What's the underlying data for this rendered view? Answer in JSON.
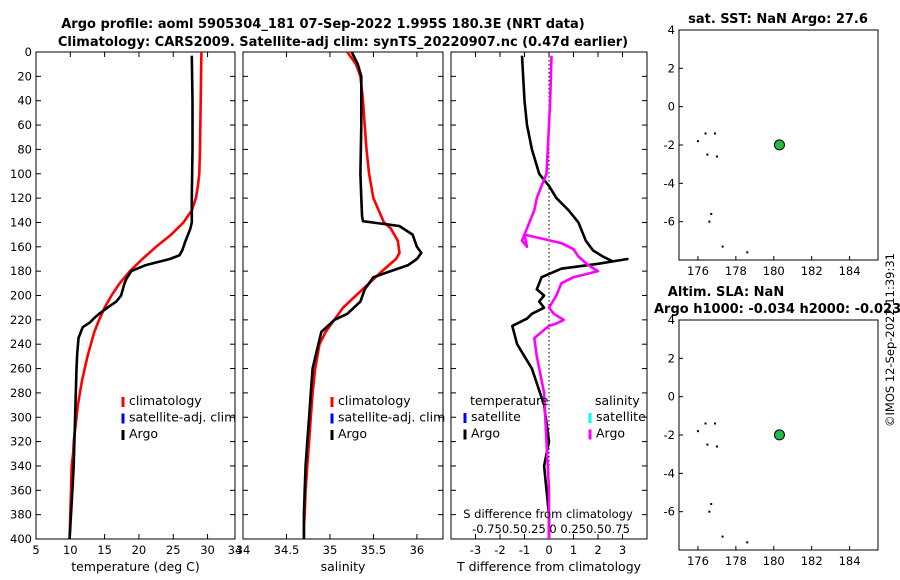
{
  "figure": {
    "title_line1": "Argo profile: aoml 5905304_181 07-Sep-2022 1.995S 180.3E (NRT data)",
    "title_line2": "Climatology: CARS2009. Satellite-adj clim: synTS_20220907.nc (0.47d earlier)",
    "side_stamp": "©IMOS 12-Sep-2022 11:39:31"
  },
  "colors": {
    "clim": "#ff0000",
    "sat": "#0000ff",
    "argo": "#000000",
    "sal_sat": "#00ffff",
    "sal_argo": "#ff00ff",
    "marker": "#22bb44"
  },
  "chart_data": [
    {
      "type": "line",
      "id": "temperature",
      "xlabel": "temperature (deg C)",
      "ylabel": "",
      "xlim": [
        5,
        34
      ],
      "ylim": [
        400,
        0
      ],
      "xticks": [
        5,
        10,
        15,
        20,
        25,
        30,
        34
      ],
      "yticks": [
        0,
        20,
        40,
        60,
        80,
        100,
        120,
        140,
        160,
        180,
        200,
        220,
        240,
        260,
        280,
        300,
        320,
        340,
        360,
        380,
        400
      ],
      "legend": [
        "climatology",
        "satellite-adj. clim",
        "Argo"
      ],
      "series": [
        {
          "name": "climatology",
          "color": "#ff0000",
          "x": [
            29.1,
            29.0,
            28.9,
            28.8,
            28.6,
            28.3,
            27.7,
            26.5,
            24.7,
            22.5,
            20.5,
            18.7,
            17.2,
            16.0,
            15.0,
            14.2,
            13.5,
            13.0,
            12.5,
            12.1,
            11.7,
            11.4,
            11.1,
            10.9,
            10.7,
            10.5,
            10.4,
            10.2,
            10.1,
            10.0,
            9.9
          ],
          "y": [
            0,
            40,
            80,
            100,
            110,
            120,
            130,
            140,
            150,
            160,
            170,
            180,
            190,
            200,
            210,
            220,
            230,
            240,
            250,
            260,
            270,
            280,
            290,
            300,
            310,
            320,
            330,
            340,
            360,
            380,
            400
          ]
        },
        {
          "name": "Argo",
          "color": "#000000",
          "x": [
            27.7,
            27.8,
            27.8,
            27.7,
            27.7,
            27.7,
            27.5,
            26.8,
            26.3,
            25.9,
            24.5,
            21.0,
            18.9,
            18.2,
            17.9,
            17.4,
            16.7,
            15.4,
            14.2,
            13.4,
            12.9,
            11.8,
            11.2,
            11.0,
            10.9,
            10.8,
            10.7,
            10.6,
            10.5,
            10.3,
            10.1,
            10.0,
            9.9
          ],
          "y": [
            3,
            40,
            80,
            120,
            135,
            140,
            145,
            155,
            163,
            167,
            170,
            175,
            180,
            186,
            190,
            200,
            205,
            210,
            215,
            219,
            222,
            226,
            235,
            248,
            260,
            280,
            300,
            320,
            340,
            360,
            380,
            390,
            400
          ]
        }
      ]
    },
    {
      "type": "line",
      "id": "salinity",
      "xlabel": "salinity",
      "ylabel": "",
      "xlim": [
        34,
        36.3
      ],
      "ylim": [
        400,
        0
      ],
      "xticks": [
        34,
        34.5,
        35,
        35.5,
        36
      ],
      "legend": [
        "climatology",
        "satellite-adj. clim",
        "Argo"
      ],
      "series": [
        {
          "name": "climatology",
          "color": "#ff0000",
          "x": [
            35.2,
            35.3,
            35.35,
            35.38,
            35.4,
            35.42,
            35.45,
            35.5,
            35.56,
            35.62,
            35.7,
            35.78,
            35.8,
            35.76,
            35.6,
            35.45,
            35.3,
            35.15,
            35.05,
            34.95,
            34.88,
            34.83,
            34.8,
            34.78,
            34.76,
            34.74,
            34.72,
            34.71,
            34.7,
            34.7
          ],
          "y": [
            0,
            10,
            20,
            40,
            60,
            80,
            100,
            120,
            130,
            140,
            145,
            155,
            165,
            170,
            180,
            190,
            200,
            210,
            220,
            230,
            240,
            260,
            280,
            300,
            320,
            340,
            360,
            380,
            390,
            400
          ]
        },
        {
          "name": "Argo",
          "color": "#000000",
          "x": [
            35.25,
            35.32,
            35.36,
            35.36,
            35.35,
            35.36,
            35.37,
            35.38,
            35.8,
            35.95,
            36.0,
            36.05,
            36.0,
            35.9,
            35.7,
            35.5,
            35.4,
            35.35,
            35.2,
            35.05,
            34.9,
            34.85,
            34.8,
            34.78,
            34.76,
            34.74,
            34.72,
            34.71,
            34.7,
            34.7
          ],
          "y": [
            0,
            10,
            20,
            60,
            100,
            120,
            135,
            139,
            143,
            150,
            160,
            165,
            170,
            175,
            180,
            185,
            195,
            205,
            215,
            220,
            230,
            245,
            260,
            280,
            300,
            320,
            340,
            360,
            380,
            400
          ]
        }
      ]
    },
    {
      "type": "line",
      "id": "difference",
      "xlabel": "T difference from climatology",
      "xlim": [
        -4,
        4
      ],
      "ylim": [
        400,
        0
      ],
      "xticks": [
        -3,
        -2,
        -1,
        0,
        1,
        2,
        3
      ],
      "xticklabels": [
        "-3",
        "-2",
        "-1",
        "0",
        "1",
        "2",
        "3"
      ],
      "top_label": "S difference from climatology",
      "top_ticks": "-0.750.50.25 0 0.250.50.75",
      "legend": [
        {
          "group": "temperature",
          "entries": [
            "satellite",
            "Argo"
          ]
        },
        {
          "group": "salinity",
          "entries": [
            "satellite",
            "Argo"
          ]
        }
      ],
      "series": [
        {
          "name": "T Argo - clim",
          "color": "#000000",
          "x": [
            -1.1,
            -1.0,
            -0.9,
            -0.7,
            -0.4,
            0.0,
            0.3,
            0.8,
            1.2,
            1.5,
            1.8,
            2.2,
            2.6,
            3.2,
            2.0,
            0.5,
            -0.3,
            -0.5,
            -0.2,
            -0.4,
            -0.2,
            -0.7,
            -0.9,
            -1.5,
            -1.3,
            -0.7,
            -0.2,
            0.0,
            -0.2,
            -0.1,
            0.0,
            0.0
          ],
          "y": [
            3,
            40,
            60,
            80,
            100,
            110,
            120,
            130,
            140,
            155,
            163,
            168,
            172,
            170,
            174,
            178,
            185,
            195,
            200,
            205,
            210,
            215,
            219,
            225,
            240,
            260,
            290,
            320,
            340,
            360,
            380,
            400
          ]
        },
        {
          "name": "S Argo - clim",
          "color": "#ff00ff",
          "x": [
            0.1,
            0.05,
            0.0,
            -0.05,
            -0.1,
            -0.3,
            -0.5,
            -0.6,
            -0.8,
            -1.1,
            -0.9,
            -1.0,
            0.5,
            1.0,
            1.2,
            1.6,
            2.0,
            1.0,
            0.5,
            0.3,
            0.0,
            0.2,
            0.6,
            0.3,
            0.0,
            -0.6,
            -0.5,
            -0.2,
            -0.1,
            0.0,
            0.0
          ],
          "y": [
            3,
            40,
            60,
            80,
            100,
            110,
            120,
            130,
            140,
            155,
            160,
            150,
            157,
            162,
            168,
            175,
            180,
            185,
            190,
            200,
            210,
            215,
            220,
            223,
            225,
            235,
            250,
            280,
            320,
            360,
            400
          ]
        }
      ]
    },
    {
      "type": "scatter",
      "id": "sst_map",
      "title": "sat. SST: NaN Argo: 27.6",
      "xlim": [
        175,
        185.5
      ],
      "ylim": [
        -8,
        4
      ],
      "xticks": [
        176,
        178,
        180,
        182,
        184
      ],
      "yticks": [
        4,
        2,
        0,
        -2,
        -4,
        -6
      ],
      "dots": [
        [
          176.0,
          -1.8
        ],
        [
          176.4,
          -1.4
        ],
        [
          176.9,
          -1.4
        ],
        [
          176.5,
          -2.5
        ],
        [
          177.0,
          -2.6
        ],
        [
          176.7,
          -5.6
        ],
        [
          176.6,
          -6.0
        ],
        [
          177.3,
          -7.3
        ],
        [
          178.6,
          -7.6
        ]
      ],
      "argo_position": [
        180.3,
        -1.995
      ]
    },
    {
      "type": "scatter",
      "id": "sla_map",
      "title": "Altim. SLA: NaN",
      "subtitle": "Argo h1000: -0.034 h2000: -0.023",
      "xlim": [
        175,
        185.5
      ],
      "ylim": [
        -8,
        4
      ],
      "xticks": [
        176,
        178,
        180,
        182,
        184
      ],
      "yticks": [
        4,
        2,
        0,
        -2,
        -4,
        -6
      ],
      "dots": [
        [
          176.0,
          -1.8
        ],
        [
          176.4,
          -1.4
        ],
        [
          176.9,
          -1.4
        ],
        [
          176.5,
          -2.5
        ],
        [
          177.0,
          -2.6
        ],
        [
          176.7,
          -5.6
        ],
        [
          176.6,
          -6.0
        ],
        [
          177.3,
          -7.3
        ],
        [
          178.6,
          -7.6
        ]
      ],
      "argo_position": [
        180.3,
        -1.995
      ]
    }
  ]
}
